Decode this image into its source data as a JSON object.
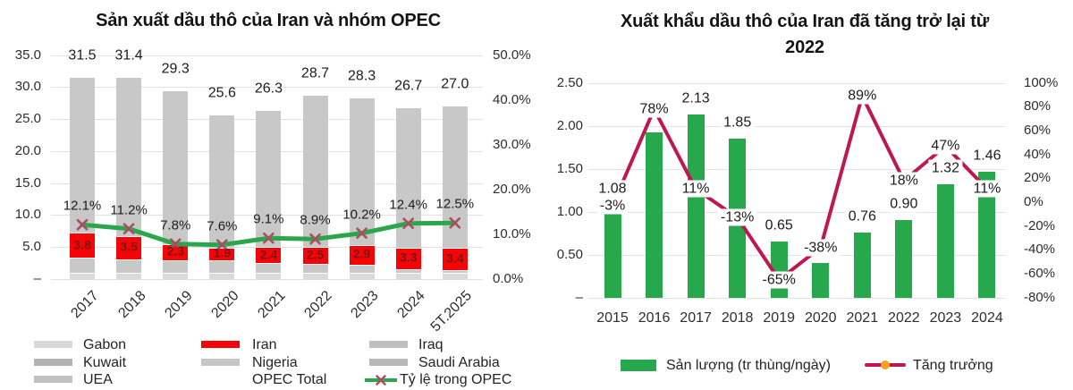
{
  "page": {
    "background": "#ffffff"
  },
  "chart_data": [
    {
      "id": "opec_production",
      "type": "bar",
      "subtype": "stacked-bar-line-combo",
      "title": "Sản xuất dầu thô của Iran và nhóm OPEC",
      "categories": [
        "2017",
        "2018",
        "2019",
        "2020",
        "2021",
        "2022",
        "2023",
        "2024",
        "5T.2025"
      ],
      "series": [
        {
          "name": "OPEC Total",
          "role": "bar-total",
          "axis": "left",
          "values": [
            31.5,
            31.4,
            29.3,
            25.6,
            26.3,
            28.7,
            28.3,
            26.7,
            27.0
          ],
          "labels": [
            "31.5",
            "31.4",
            "29.3",
            "25.6",
            "26.3",
            "28.7",
            "28.3",
            "26.7",
            "27.0"
          ],
          "color": "#c8c8c8",
          "base_band_color": "#dadada"
        },
        {
          "name": "Iran",
          "role": "bar-segment",
          "axis": "left",
          "values": [
            3.8,
            3.5,
            2.3,
            1.9,
            2.4,
            2.5,
            2.9,
            3.3,
            3.4
          ],
          "labels": [
            "3.8",
            "3.5",
            "2.3",
            "1.9",
            "2.4",
            "2.5",
            "2.9",
            "3.3",
            "3.4"
          ],
          "segment_base_estimate": [
            3.4,
            3.2,
            3.1,
            3.0,
            2.6,
            2.5,
            2.4,
            1.6,
            1.5
          ],
          "color": "#f50508",
          "label_color": "#7d1315"
        },
        {
          "name": "Tỷ lệ trong OPEC",
          "role": "line",
          "axis": "right",
          "unit": "%",
          "values": [
            12.1,
            11.2,
            7.8,
            7.6,
            9.1,
            8.9,
            10.2,
            12.4,
            12.5
          ],
          "labels": [
            "12.1%",
            "11.2%",
            "7.8%",
            "7.6%",
            "9.1%",
            "8.9%",
            "10.2%",
            "12.4%",
            "12.5%"
          ],
          "color": "#2ba64c",
          "marker": "x",
          "marker_color": "#aa4f63"
        }
      ],
      "left_axis": {
        "min": 0,
        "max": 35,
        "tick_labels": [
          "35.0",
          "30.0",
          "25.0",
          "20.0",
          "15.0",
          "10.0",
          "5.0",
          "–"
        ]
      },
      "right_axis": {
        "min": 0,
        "max": 50,
        "tick_labels": [
          "50.0%",
          "40.0%",
          "30.0%",
          "20.0%",
          "10.0%",
          "0.0%"
        ]
      },
      "grid": "horizontal",
      "legend_position": "bottom",
      "legend": [
        {
          "label": "Gabon",
          "swatch": "#d9d9d9"
        },
        {
          "label": "Iran",
          "swatch": "#f50508"
        },
        {
          "label": "Iraq",
          "swatch": "#bfbfbf"
        },
        {
          "label": "Kuwait",
          "swatch": "#b3b3b3"
        },
        {
          "label": "Nigeria",
          "swatch": "#c6c6c6"
        },
        {
          "label": "Saudi Arabia",
          "swatch": "#b8b8b8"
        },
        {
          "label": "UEA",
          "swatch": "#c0c0c0"
        },
        {
          "label": "OPEC Total",
          "swatch": "none"
        },
        {
          "label": "Tỷ lệ trong OPEC",
          "swatch": "line-x"
        }
      ]
    },
    {
      "id": "iran_exports",
      "type": "bar",
      "subtype": "bar-line-combo",
      "title": "Xuất khẩu dầu thô của Iran đã tăng trở lại từ 2022",
      "title_lines": [
        "Xuất khẩu dầu thô của Iran đã tăng trở lại từ",
        "2022"
      ],
      "categories": [
        "2015",
        "2016",
        "2017",
        "2018",
        "2019",
        "2020",
        "2021",
        "2022",
        "2023",
        "2024"
      ],
      "series": [
        {
          "name": "Sản lượng (tr thùng/ngày)",
          "role": "bar",
          "axis": "left",
          "values": [
            1.08,
            1.92,
            2.13,
            1.85,
            0.65,
            0.4,
            0.76,
            0.9,
            1.32,
            1.46
          ],
          "labels": [
            "1.08",
            "",
            "2.13",
            "1.85",
            "0.65",
            "",
            "0.76",
            "0.90",
            "1.32",
            "1.46"
          ],
          "color": "#27a84d"
        },
        {
          "name": "Tăng trưởng",
          "role": "line",
          "axis": "right",
          "unit": "%",
          "values": [
            -3,
            78,
            11,
            -13,
            -65,
            -38,
            89,
            18,
            47,
            11
          ],
          "labels": [
            "-3%",
            "78%",
            "11%",
            "-13%",
            "-65%",
            "-38%",
            "89%",
            "18%",
            "47%",
            "11%"
          ],
          "color": "#be1853",
          "marker": "dot",
          "marker_color": "#f6a21b"
        }
      ],
      "left_axis": {
        "min": 0,
        "max": 2.5,
        "tick_labels": [
          "2.50",
          "2.00",
          "1.50",
          "1.00",
          "0.50",
          "–"
        ]
      },
      "right_axis": {
        "min": -80,
        "max": 100,
        "tick_labels": [
          "100%",
          "80%",
          "60%",
          "40%",
          "20%",
          "0%",
          "-20%",
          "-40%",
          "-60%",
          "-80%"
        ]
      },
      "grid": "horizontal",
      "legend_position": "bottom",
      "legend": [
        {
          "label": "Sản lượng (tr thùng/ngày)",
          "swatch": "#27a84d"
        },
        {
          "label": "Tăng trưởng",
          "swatch": "line-dot"
        }
      ]
    }
  ]
}
